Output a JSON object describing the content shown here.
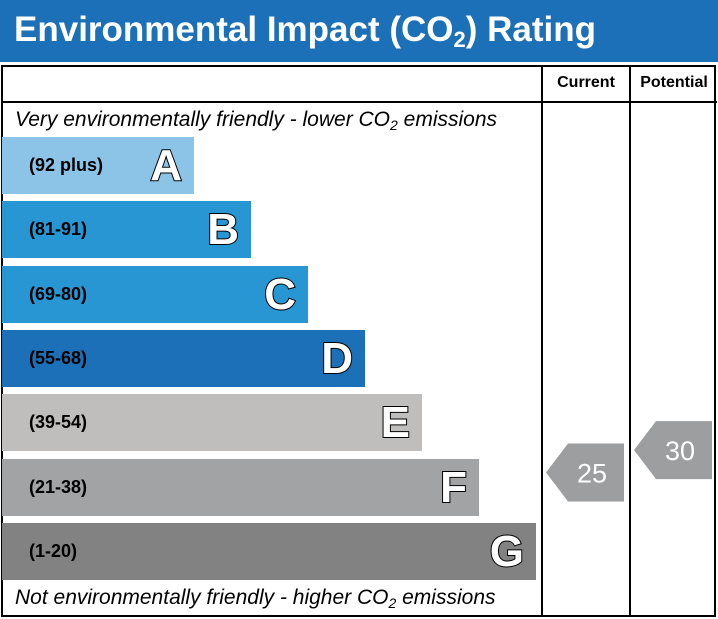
{
  "title": {
    "prefix": "Environmental Impact (CO",
    "sub": "2",
    "suffix": ") Rating"
  },
  "columns": {
    "current": "Current",
    "potential": "Potential"
  },
  "top_note": {
    "prefix": "Very environmentally friendly - lower CO",
    "sub": "2",
    "suffix": " emissions"
  },
  "bottom_note": {
    "prefix": "Not environmentally friendly - higher CO",
    "sub": "2",
    "suffix": " emissions"
  },
  "chart_data": {
    "type": "bar",
    "categories": [
      "A",
      "B",
      "C",
      "D",
      "E",
      "F",
      "G"
    ],
    "ranges": [
      "(92 plus)",
      "(81-91)",
      "(69-80)",
      "(55-68)",
      "(39-54)",
      "(21-38)",
      "(1-20)"
    ],
    "colors": [
      "#8cc4e8",
      "#2896d3",
      "#2896d3",
      "#1c70b7",
      "#bfbebc",
      "#a2a3a5",
      "#828282"
    ],
    "current": {
      "value": 25,
      "band": "F"
    },
    "potential": {
      "value": 30,
      "band": "F"
    },
    "indicator_color": "#9d9e9f"
  }
}
